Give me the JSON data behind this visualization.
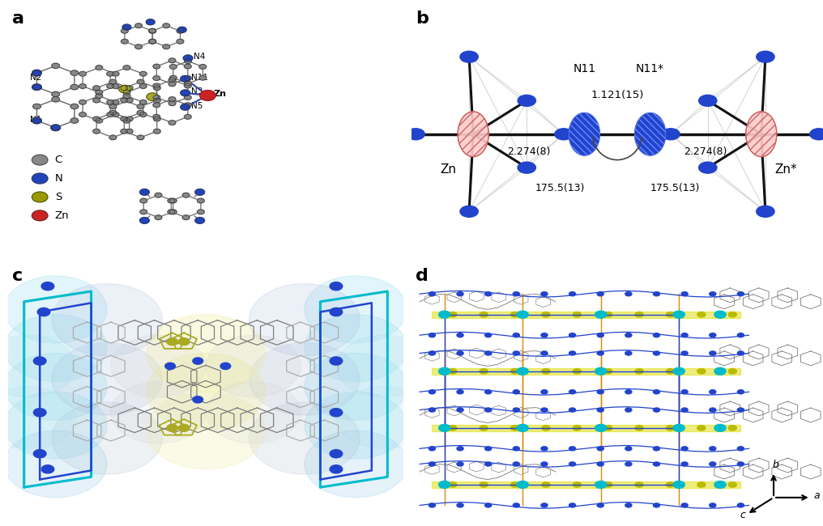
{
  "bg_color": "#ffffff",
  "panel_labels": [
    "a",
    "b",
    "c",
    "d"
  ],
  "panel_label_fontsize": 16,
  "panel_label_fontweight": "bold",
  "panel_b": {
    "bond_length_label": "1.121(15)",
    "dist_left": "2.274(8)",
    "dist_right": "2.274(8)",
    "angle_left": "175.5(13)",
    "angle_right": "175.5(13)"
  },
  "legend_a": {
    "items": [
      "C",
      "N",
      "S",
      "Zn"
    ],
    "colors": [
      "#888888",
      "#2244bb",
      "#999900",
      "#cc2222"
    ]
  },
  "axis_labels": {
    "b": "b",
    "c": "c",
    "a": "a"
  }
}
